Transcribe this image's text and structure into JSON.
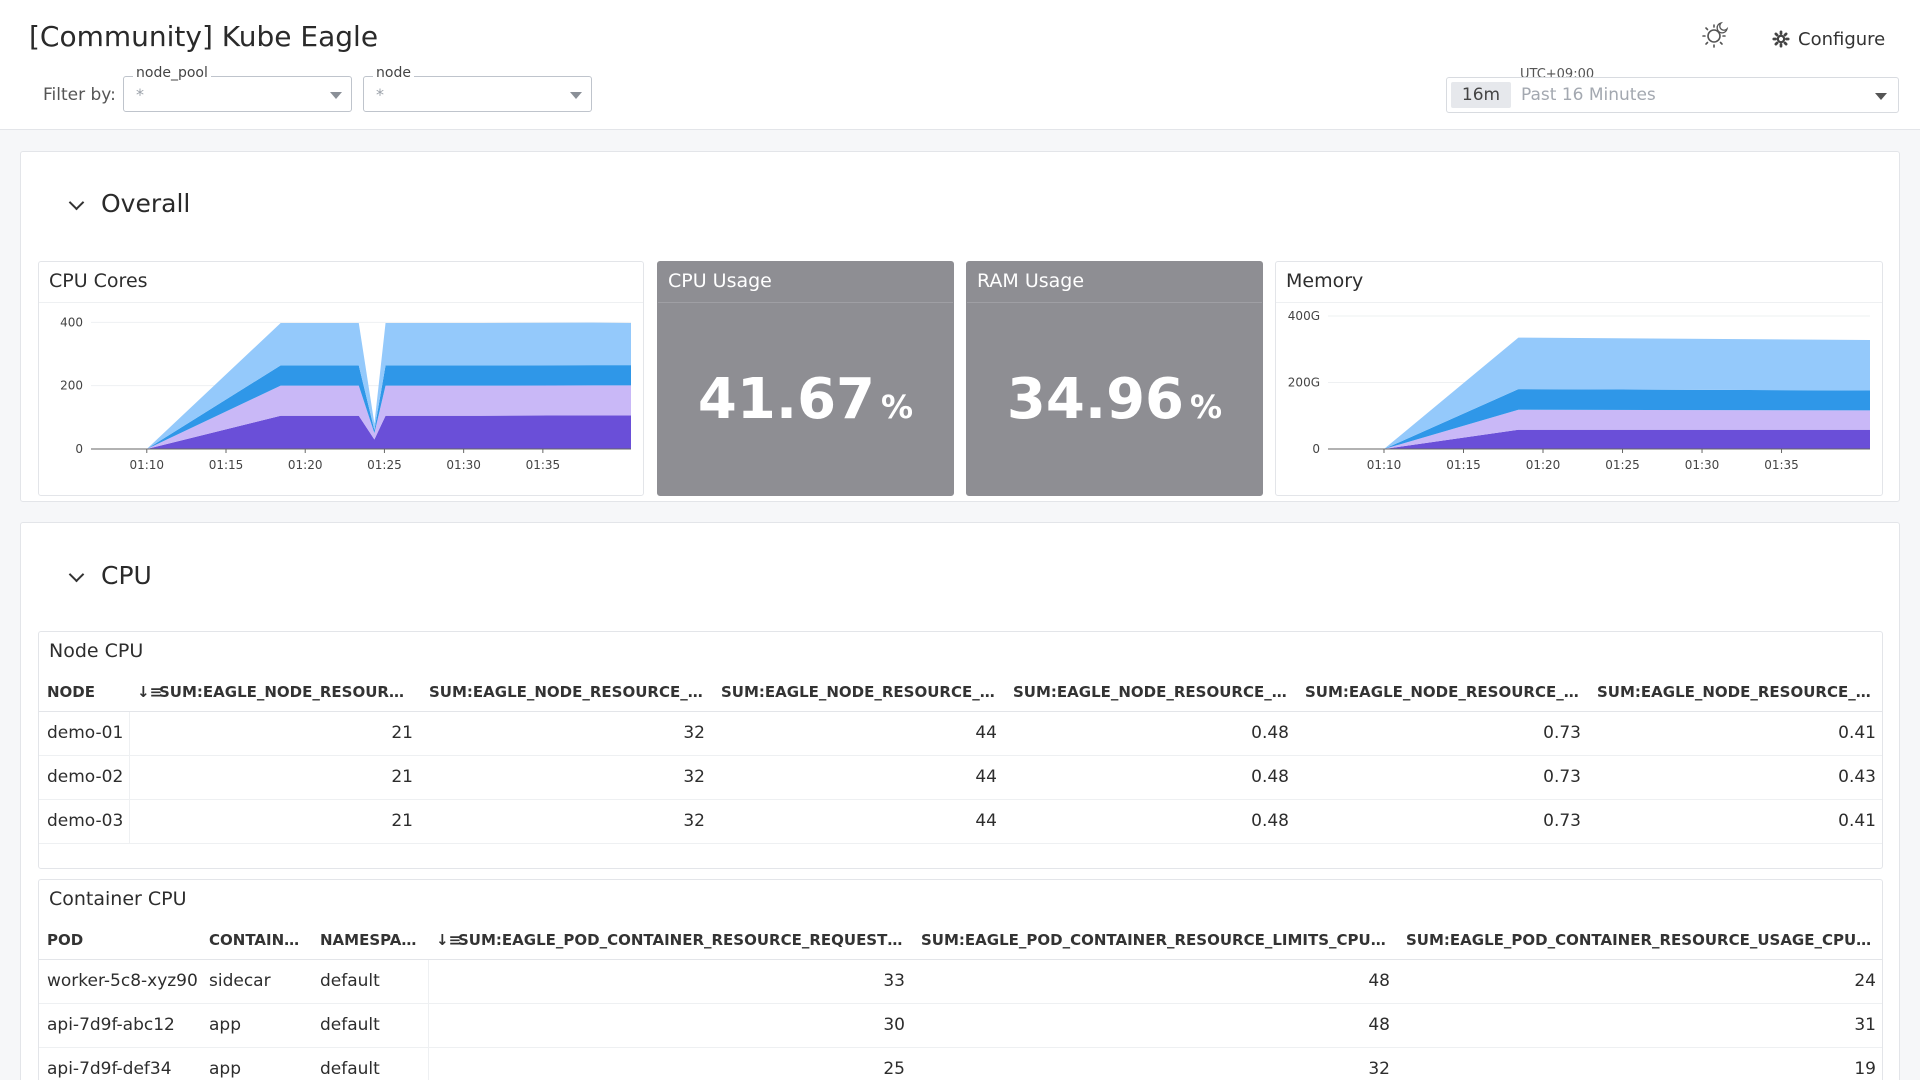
{
  "header": {
    "title": "[Community] Kube Eagle",
    "filter_label": "Filter by:",
    "filters": [
      {
        "name": "node_pool",
        "value": "*"
      },
      {
        "name": "node",
        "value": "*"
      }
    ],
    "configure_label": "Configure",
    "timezone": "UTC+09:00",
    "time_badge": "16m",
    "time_label": "Past 16 Minutes"
  },
  "overall": {
    "title": "Overall",
    "cpu_cores": {
      "title": "CPU Cores",
      "chart_data": {
        "type": "area",
        "stacked": true,
        "x_ticks": [
          "01:10",
          "01:15",
          "01:20",
          "01:25",
          "01:30",
          "01:35"
        ],
        "y_ticks": [
          "0",
          "200",
          "400"
        ],
        "ylim": [
          0,
          420
        ],
        "x": [
          0,
          6.0,
          9.5,
          10.2,
          10.7,
          15,
          20,
          21.7
        ],
        "series": [
          {
            "color": "#6a4fd8",
            "values": [
              0,
              105,
              105,
              30,
              105,
              105,
              106,
              106
            ]
          },
          {
            "color": "#c9b8f7",
            "values": [
              0,
              95,
              95,
              20,
              95,
              95,
              95,
              95
            ]
          },
          {
            "color": "#2f97e8",
            "values": [
              0,
              64,
              64,
              10,
              64,
              64,
              64,
              64
            ]
          },
          {
            "color": "#94c9fb",
            "values": [
              0,
              134,
              134,
              20,
              134,
              134,
              134,
              133
            ]
          }
        ]
      }
    },
    "cpu_usage": {
      "title": "CPU Usage",
      "value": "41.67",
      "unit": "%"
    },
    "ram_usage": {
      "title": "RAM Usage",
      "value": "34.96",
      "unit": "%"
    },
    "memory": {
      "title": "Memory",
      "chart_data": {
        "type": "area",
        "stacked": true,
        "x_ticks": [
          "01:10",
          "01:15",
          "01:20",
          "01:25",
          "01:30",
          "01:35"
        ],
        "y_ticks": [
          "0",
          "200G",
          "400G"
        ],
        "ylim": [
          0,
          400
        ],
        "x": [
          0,
          6.0,
          21.7
        ],
        "series": [
          {
            "color": "#6a4fd8",
            "values": [
              0,
              58,
              58
            ]
          },
          {
            "color": "#c9b8f7",
            "values": [
              0,
              60,
              58
            ]
          },
          {
            "color": "#2f97e8",
            "values": [
              0,
              62,
              60
            ]
          },
          {
            "color": "#94c9fb",
            "values": [
              0,
              155,
              152
            ]
          }
        ]
      }
    }
  },
  "cpu": {
    "title": "CPU",
    "node_cpu": {
      "title": "Node CPU",
      "columns": [
        "NODE",
        "SUM:EAGLE_NODE_RESOURC...",
        "SUM:EAGLE_NODE_RESOURCE_LI...",
        "SUM:EAGLE_NODE_RESOURCE_AL...",
        "SUM:EAGLE_NODE_RESOURCE_RE...",
        "SUM:EAGLE_NODE_RESOURCE_LI...",
        "SUM:EAGLE_NODE_RESOURCE_US..."
      ],
      "rows": [
        [
          "demo-01",
          "21",
          "32",
          "44",
          "0.48",
          "0.73",
          "0.41"
        ],
        [
          "demo-02",
          "21",
          "32",
          "44",
          "0.48",
          "0.73",
          "0.43"
        ],
        [
          "demo-03",
          "21",
          "32",
          "44",
          "0.48",
          "0.73",
          "0.41"
        ]
      ]
    },
    "container_cpu": {
      "title": "Container CPU",
      "columns": [
        "POD",
        "CONTAINER",
        "NAMESPACE",
        "SUM:EAGLE_POD_CONTAINER_RESOURCE_REQUESTS_C...",
        "SUM:EAGLE_POD_CONTAINER_RESOURCE_LIMITS_CPU_CO...",
        "SUM:EAGLE_POD_CONTAINER_RESOURCE_USAGE_CPU_CO..."
      ],
      "rows": [
        [
          "worker-5c8-xyz90",
          "sidecar",
          "default",
          "33",
          "48",
          "24"
        ],
        [
          "api-7d9f-abc12",
          "app",
          "default",
          "30",
          "48",
          "31"
        ],
        [
          "api-7d9f-def34",
          "app",
          "default",
          "25",
          "32",
          "19"
        ]
      ]
    }
  }
}
